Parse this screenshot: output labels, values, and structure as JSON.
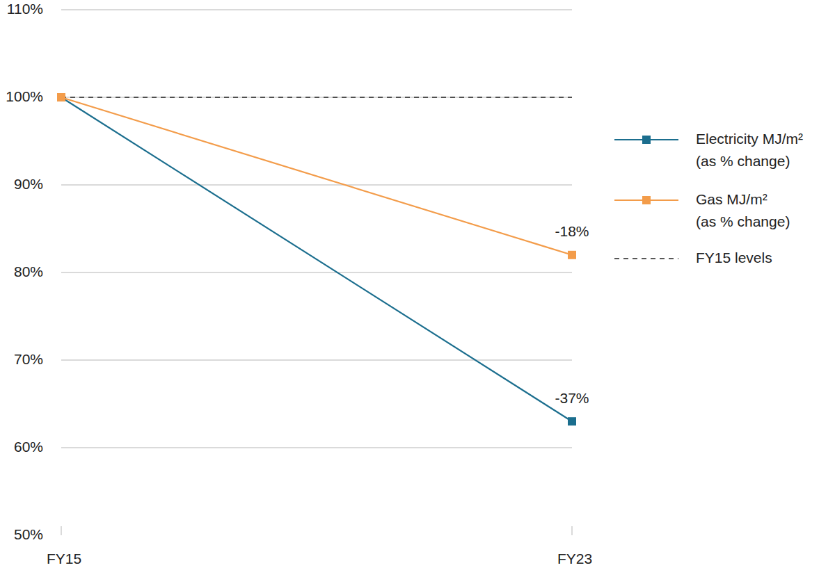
{
  "chart_data": {
    "type": "line",
    "categories": [
      "FY15",
      "FY23"
    ],
    "series": [
      {
        "name": "Electricity MJ/m² (as % change)",
        "color": "#1b6e8e",
        "marker": "square",
        "values": [
          100,
          63
        ]
      },
      {
        "name": "Gas MJ/m² (as % change)",
        "color": "#f39c4a",
        "marker": "square",
        "values": [
          100,
          82
        ]
      }
    ],
    "reference_lines": [
      {
        "value": 100,
        "label": "FY15 levels",
        "line_style": "dashed",
        "color": "#222222"
      }
    ],
    "annotations": [
      {
        "text": "-18%",
        "x": "FY23",
        "y": 82
      },
      {
        "text": "-37%",
        "x": "FY23",
        "y": 63
      }
    ],
    "ylim": [
      50,
      110
    ],
    "yticks": [
      {
        "value": 50,
        "label": "50%"
      },
      {
        "value": 60,
        "label": "60%"
      },
      {
        "value": 70,
        "label": "70%"
      },
      {
        "value": 80,
        "label": "80%"
      },
      {
        "value": 90,
        "label": "90%"
      },
      {
        "value": 100,
        "label": "100%"
      },
      {
        "value": 110,
        "label": "110%"
      }
    ],
    "grid": true,
    "legend": "right"
  }
}
